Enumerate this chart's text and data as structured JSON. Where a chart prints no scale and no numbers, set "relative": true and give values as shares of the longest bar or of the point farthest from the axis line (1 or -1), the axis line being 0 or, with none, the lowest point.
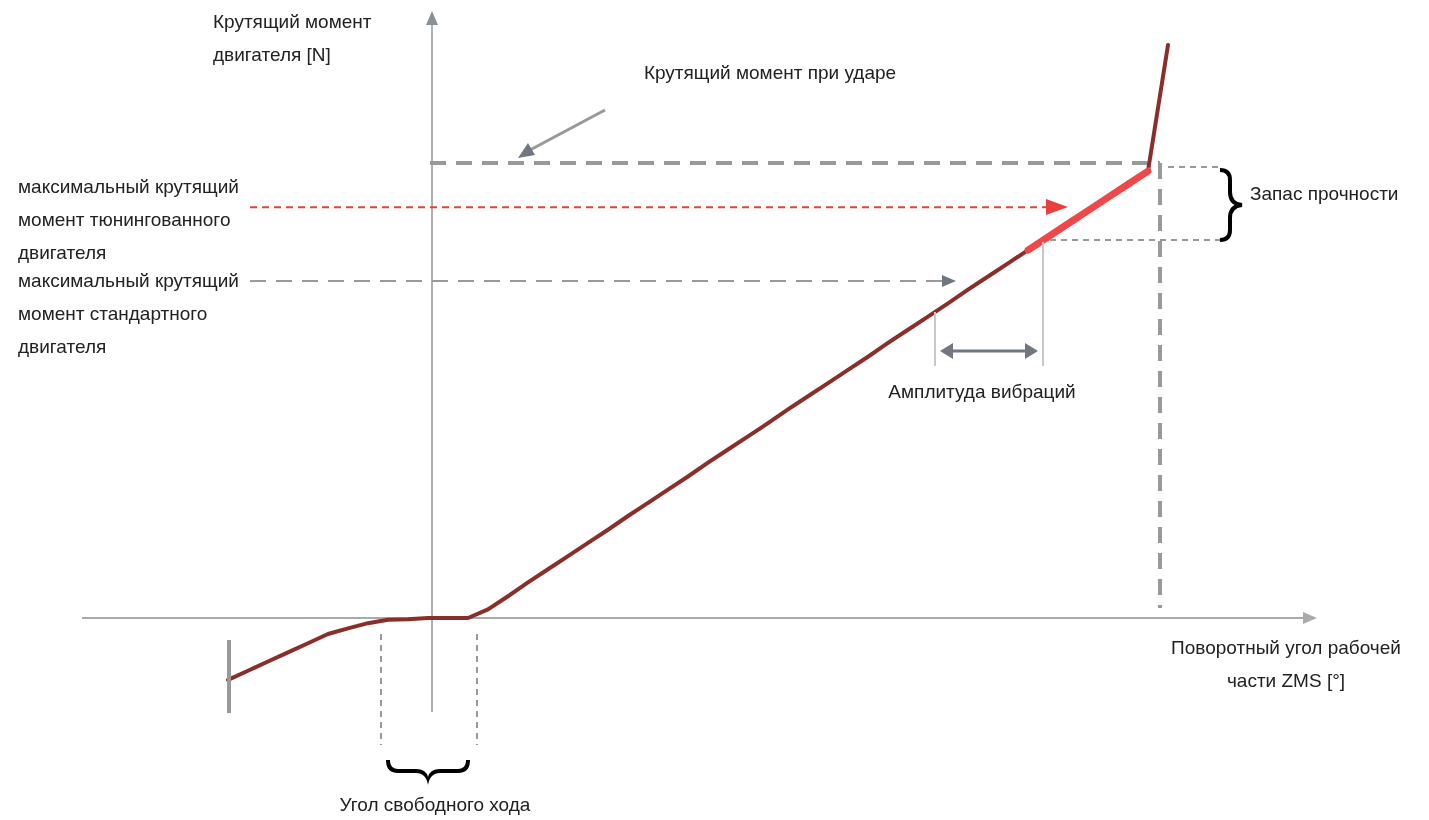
{
  "chart_data": {
    "type": "line",
    "relative": true,
    "line_style": "solid",
    "xlabel": "Поворотный угол рабочей части ZMS [°]",
    "ylabel": "Крутящий момент двигателя [N]",
    "categories": [
      null,
      null,
      null,
      null,
      null,
      null,
      null,
      null,
      null,
      null,
      null,
      null,
      null,
      null,
      null,
      null,
      null,
      null,
      null,
      null,
      null,
      null,
      null,
      null,
      null,
      null,
      null,
      null,
      null,
      null,
      null,
      null,
      null,
      null,
      null,
      null,
      null,
      null,
      null,
      null,
      null,
      null,
      null,
      null,
      null,
      null,
      null,
      null
    ],
    "series": [
      {
        "color": "#8b2e2a",
        "values": [
          -0.108,
          -0.092,
          -0.076,
          -0.06,
          -0.044,
          -0.028,
          -0.018,
          -0.009,
          -0.003,
          -0.002,
          0,
          0,
          0,
          0.015,
          0.038,
          0.062,
          0.085,
          0.108,
          0.131,
          0.154,
          0.178,
          0.201,
          0.224,
          0.247,
          0.271,
          0.294,
          0.317,
          0.34,
          0.364,
          0.387,
          0.41,
          0.433,
          0.456,
          0.48,
          0.503,
          0.526,
          0.549,
          0.573,
          0.596,
          0.619,
          0.642,
          null,
          null,
          null,
          null,
          null,
          0.78,
          1.0
        ]
      },
      {
        "color": "#f0474a",
        "values": [
          null,
          null,
          null,
          null,
          null,
          null,
          null,
          null,
          null,
          null,
          null,
          null,
          null,
          null,
          null,
          null,
          null,
          null,
          null,
          null,
          null,
          null,
          null,
          null,
          null,
          null,
          null,
          null,
          null,
          null,
          null,
          null,
          null,
          null,
          null,
          null,
          null,
          null,
          null,
          null,
          0.642,
          0.665,
          0.688,
          0.711,
          0.734,
          0.757,
          0.78,
          null
        ]
      }
    ],
    "ref_lines": [
      {
        "axis": "y",
        "value": 0.794,
        "color": "#999999",
        "line_style": "dashed"
      },
      {
        "axis": "y",
        "value": 0.717,
        "label": "максимальный крутящий момент тюнингованного двигателя",
        "color": "#e8403f",
        "line_style": "dotted"
      },
      {
        "axis": "y",
        "value": 0.588,
        "label": "максимальный крутящий момент стандартного двигателя",
        "color": "#999999",
        "line_style": "dashed"
      }
    ],
    "annotations": [
      "Крутящий момент при ударе",
      "Запас прочности",
      "Амплитуда вибраций",
      "Угол свободного хода"
    ]
  }
}
